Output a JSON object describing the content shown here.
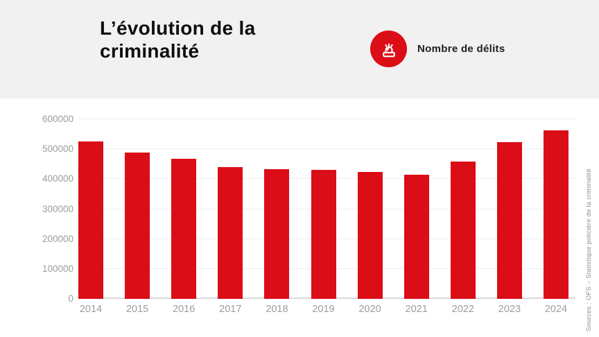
{
  "header": {
    "title": "L’évolution de la criminalité",
    "legend": {
      "icon": "siren-icon",
      "label": "Nombre de délits"
    }
  },
  "source_note": "Sources : OFS – Statistique policière de la criminalité",
  "colors": {
    "bar": "#db0d17",
    "legend_badge": "#db0d17",
    "header_bg": "#f1f1f1",
    "title_text": "#0e0e0e",
    "legend_text": "#1d1d1d",
    "axis_text": "#9c9c9c",
    "grid": "#ededed",
    "baseline": "#d8d8d8",
    "source_text": "#8d8d8d"
  },
  "chart_data": {
    "type": "bar",
    "title": "L’évolution de la criminalité",
    "legend": [
      "Nombre de délits"
    ],
    "legend_position": "top-right",
    "categories": [
      "2014",
      "2015",
      "2016",
      "2017",
      "2018",
      "2019",
      "2020",
      "2021",
      "2022",
      "2023",
      "2024"
    ],
    "values": [
      527000,
      488000,
      467000,
      440000,
      433000,
      431000,
      423000,
      415000,
      458000,
      523000,
      563000
    ],
    "xlabel": "",
    "ylabel": "",
    "ylim": [
      0,
      600000
    ],
    "yticks": [
      0,
      100000,
      200000,
      300000,
      400000,
      500000,
      600000
    ],
    "grid": true
  }
}
